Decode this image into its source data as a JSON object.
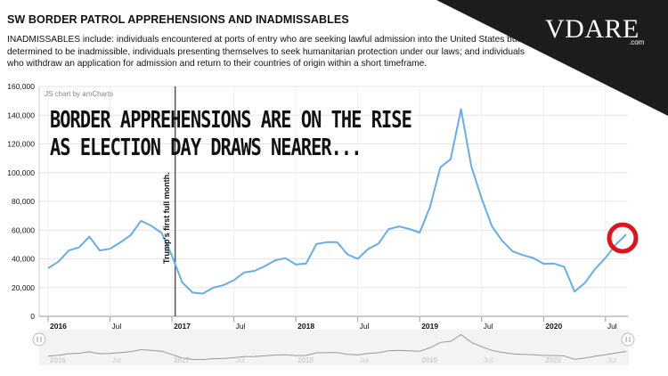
{
  "header": {
    "title": "SW BORDER PATROL APPREHENSIONS AND INADMISSABLES",
    "description": "INADMISSABLES include: individuals encountered at ports of entry who are seeking lawful admission into the United States but are determined to be inadmissible, individuals presenting themselves to seek humanitarian protection under our laws; and individuals who withdraw an application for admission and return to their countries of origin within a short timeframe."
  },
  "branding": {
    "logo": "VDARE",
    "domain": ".com",
    "banner_color": "#1c1c1c"
  },
  "credit": "JS chart by amCharts",
  "headline": {
    "line1": "BORDER APPREHENSIONS ARE ON THE RISE",
    "line2": "AS ELECTION DAY DRAWS NEARER..."
  },
  "chart_data": {
    "type": "line",
    "x_axis_type": "date",
    "x_start": "2016-01",
    "x_end": "2020-09",
    "ylim": [
      0,
      160000
    ],
    "y_ticks": [
      "0",
      "20,000",
      "40,000",
      "60,000",
      "80,000",
      "100,000",
      "120,000",
      "140,000",
      "160,000"
    ],
    "x_ticks": [
      {
        "label": "2016",
        "date": "2016-01",
        "bold": true
      },
      {
        "label": "Jul",
        "date": "2016-07",
        "bold": false
      },
      {
        "label": "2017",
        "date": "2017-01",
        "bold": true
      },
      {
        "label": "Jul",
        "date": "2017-07",
        "bold": false
      },
      {
        "label": "2018",
        "date": "2018-01",
        "bold": true
      },
      {
        "label": "Jul",
        "date": "2018-07",
        "bold": false
      },
      {
        "label": "2019",
        "date": "2019-01",
        "bold": true
      },
      {
        "label": "Jul",
        "date": "2019-07",
        "bold": false
      },
      {
        "label": "2020",
        "date": "2020-01",
        "bold": true
      },
      {
        "label": "Jul",
        "date": "2020-07",
        "bold": false
      }
    ],
    "grid": true,
    "series_color": "#67aee9",
    "series": [
      {
        "values": [
          {
            "x": "2016-01",
            "y": 33500
          },
          {
            "x": "2016-02",
            "y": 38000
          },
          {
            "x": "2016-03",
            "y": 45800
          },
          {
            "x": "2016-04",
            "y": 48000
          },
          {
            "x": "2016-05",
            "y": 55500
          },
          {
            "x": "2016-06",
            "y": 45800
          },
          {
            "x": "2016-07",
            "y": 47000
          },
          {
            "x": "2016-08",
            "y": 51500
          },
          {
            "x": "2016-09",
            "y": 56500
          },
          {
            "x": "2016-10",
            "y": 66500
          },
          {
            "x": "2016-11",
            "y": 63000
          },
          {
            "x": "2016-12",
            "y": 58000
          },
          {
            "x": "2017-01",
            "y": 42000
          },
          {
            "x": "2017-02",
            "y": 23500
          },
          {
            "x": "2017-03",
            "y": 16500
          },
          {
            "x": "2017-04",
            "y": 15800
          },
          {
            "x": "2017-05",
            "y": 19900
          },
          {
            "x": "2017-06",
            "y": 21700
          },
          {
            "x": "2017-07",
            "y": 25100
          },
          {
            "x": "2017-08",
            "y": 30600
          },
          {
            "x": "2017-09",
            "y": 31600
          },
          {
            "x": "2017-10",
            "y": 34900
          },
          {
            "x": "2017-11",
            "y": 39000
          },
          {
            "x": "2017-12",
            "y": 40500
          },
          {
            "x": "2018-01",
            "y": 36000
          },
          {
            "x": "2018-02",
            "y": 36800
          },
          {
            "x": "2018-03",
            "y": 50300
          },
          {
            "x": "2018-04",
            "y": 51600
          },
          {
            "x": "2018-05",
            "y": 51600
          },
          {
            "x": "2018-06",
            "y": 43100
          },
          {
            "x": "2018-07",
            "y": 40000
          },
          {
            "x": "2018-08",
            "y": 46800
          },
          {
            "x": "2018-09",
            "y": 50600
          },
          {
            "x": "2018-10",
            "y": 60700
          },
          {
            "x": "2018-11",
            "y": 62500
          },
          {
            "x": "2018-12",
            "y": 60800
          },
          {
            "x": "2019-01",
            "y": 58300
          },
          {
            "x": "2019-02",
            "y": 76100
          },
          {
            "x": "2019-03",
            "y": 103700
          },
          {
            "x": "2019-04",
            "y": 109400
          },
          {
            "x": "2019-05",
            "y": 144100
          },
          {
            "x": "2019-06",
            "y": 104300
          },
          {
            "x": "2019-07",
            "y": 82000
          },
          {
            "x": "2019-08",
            "y": 62700
          },
          {
            "x": "2019-09",
            "y": 52500
          },
          {
            "x": "2019-10",
            "y": 45200
          },
          {
            "x": "2019-11",
            "y": 42600
          },
          {
            "x": "2019-12",
            "y": 40600
          },
          {
            "x": "2020-01",
            "y": 36600
          },
          {
            "x": "2020-02",
            "y": 36700
          },
          {
            "x": "2020-03",
            "y": 34500
          },
          {
            "x": "2020-04",
            "y": 17100
          },
          {
            "x": "2020-05",
            "y": 23200
          },
          {
            "x": "2020-06",
            "y": 33000
          },
          {
            "x": "2020-07",
            "y": 40700
          },
          {
            "x": "2020-08",
            "y": 50000
          },
          {
            "x": "2020-09",
            "y": 57000
          }
        ]
      }
    ],
    "annotations": [
      {
        "text": "Trump's first full month.",
        "x": "2017-02"
      }
    ],
    "highlight": {
      "x": "2020-09",
      "shape": "circle",
      "color": "#e0141c"
    }
  }
}
